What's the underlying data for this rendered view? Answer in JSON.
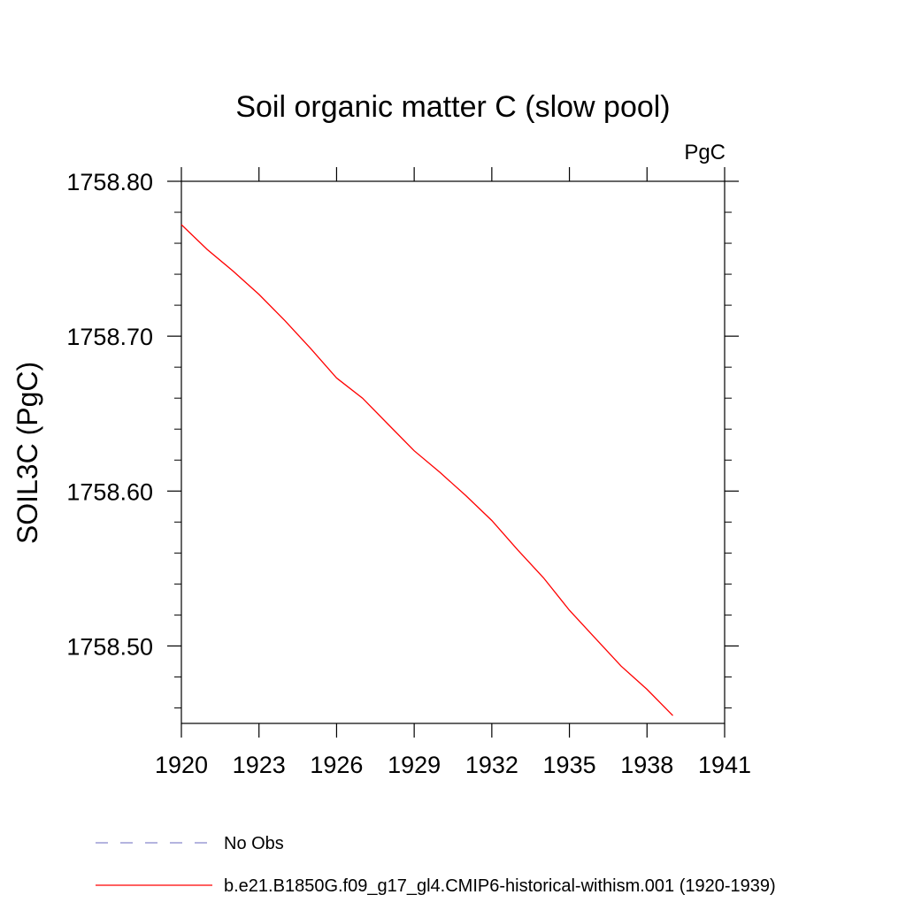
{
  "chart_data": {
    "type": "line",
    "title": "Soil organic matter C (slow pool)",
    "units_label": "PgC",
    "ylabel": "SOIL3C  (PgC)",
    "xlabel": "",
    "xlim": [
      1920,
      1941
    ],
    "ylim": [
      1758.45,
      1758.8
    ],
    "x_ticks": [
      1920,
      1923,
      1926,
      1929,
      1932,
      1935,
      1938,
      1941
    ],
    "y_ticks": [
      "1758.50",
      "1758.60",
      "1758.70",
      "1758.80"
    ],
    "y_tick_values": [
      1758.5,
      1758.6,
      1758.7,
      1758.8
    ],
    "series": [
      {
        "name": "b.e21.B1850G.f09_g17_gl4.CMIP6-historical-withism.001 (1920-1939)",
        "color": "#ff0000",
        "style": "solid",
        "x": [
          1920,
          1921,
          1922,
          1923,
          1924,
          1925,
          1926,
          1927,
          1928,
          1929,
          1930,
          1931,
          1932,
          1933,
          1934,
          1935,
          1936,
          1937,
          1938,
          1939
        ],
        "y": [
          1758.772,
          1758.756,
          1758.742,
          1758.727,
          1758.71,
          1758.692,
          1758.673,
          1758.66,
          1758.643,
          1758.626,
          1758.612,
          1758.597,
          1758.581,
          1758.562,
          1758.544,
          1758.523,
          1758.505,
          1758.487,
          1758.472,
          1758.455
        ]
      }
    ],
    "legend": {
      "placement": "bottom-left",
      "entries": [
        {
          "label": "No Obs",
          "color": "#8888cc",
          "style": "dashed"
        },
        {
          "label": "b.e21.B1850G.f09_g17_gl4.CMIP6-historical-withism.001 (1920-1939)",
          "color": "#ff0000",
          "style": "solid"
        }
      ]
    },
    "grid": false
  }
}
